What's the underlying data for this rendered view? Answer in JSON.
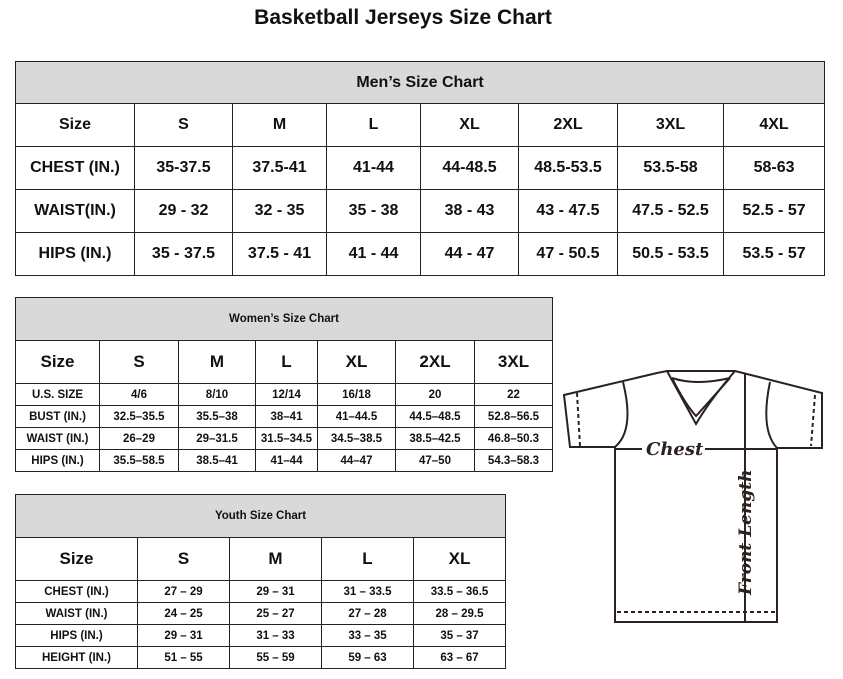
{
  "title": "Basketball Jerseys Size Chart",
  "men": {
    "title": "Men’s Size Chart",
    "header": [
      "Size",
      "S",
      "M",
      "L",
      "XL",
      "2XL",
      "3XL",
      "4XL"
    ],
    "rows": [
      [
        "CHEST (IN.)",
        "35-37.5",
        "37.5-41",
        "41-44",
        "44-48.5",
        "48.5-53.5",
        "53.5-58",
        "58-63"
      ],
      [
        "WAIST(IN.)",
        "29 - 32",
        "32 - 35",
        "35 - 38",
        "38 - 43",
        "43 - 47.5",
        "47.5 - 52.5",
        "52.5 - 57"
      ],
      [
        "HIPS (IN.)",
        "35 - 37.5",
        "37.5 - 41",
        "41 - 44",
        "44 - 47",
        "47 - 50.5",
        "50.5 - 53.5",
        "53.5 - 57"
      ]
    ]
  },
  "women": {
    "title": "Women’s Size Chart",
    "header": [
      "Size",
      "S",
      "M",
      "L",
      "XL",
      "2XL",
      "3XL"
    ],
    "rows": [
      [
        "U.S. SIZE",
        "4/6",
        "8/10",
        "12/14",
        "16/18",
        "20",
        "22"
      ],
      [
        "BUST (IN.)",
        "32.5–35.5",
        "35.5–38",
        "38–41",
        "41–44.5",
        "44.5–48.5",
        "52.8–56.5"
      ],
      [
        "WAIST (IN.)",
        "26–29",
        "29–31.5",
        "31.5–34.5",
        "34.5–38.5",
        "38.5–42.5",
        "46.8–50.3"
      ],
      [
        "HIPS (IN.)",
        "35.5–58.5",
        "38.5–41",
        "41–44",
        "44–47",
        "47–50",
        "54.3–58.3"
      ]
    ]
  },
  "youth": {
    "title": "Youth Size Chart",
    "header": [
      "Size",
      "S",
      "M",
      "L",
      "XL"
    ],
    "rows": [
      [
        "CHEST (IN.)",
        "27 – 29",
        "29 – 31",
        "31 – 33.5",
        "33.5 – 36.5"
      ],
      [
        "WAIST (IN.)",
        "24 – 25",
        "25 – 27",
        "27 – 28",
        "28 – 29.5"
      ],
      [
        "HIPS (IN.)",
        "29 – 31",
        "31 – 33",
        "33 – 35",
        "35 – 37"
      ],
      [
        "HEIGHT (IN.)",
        "51 – 55",
        "55 – 59",
        "59 – 63",
        "63 – 67"
      ]
    ]
  },
  "diagram": {
    "chest_label": "Chest",
    "length_label": "Front Length"
  }
}
